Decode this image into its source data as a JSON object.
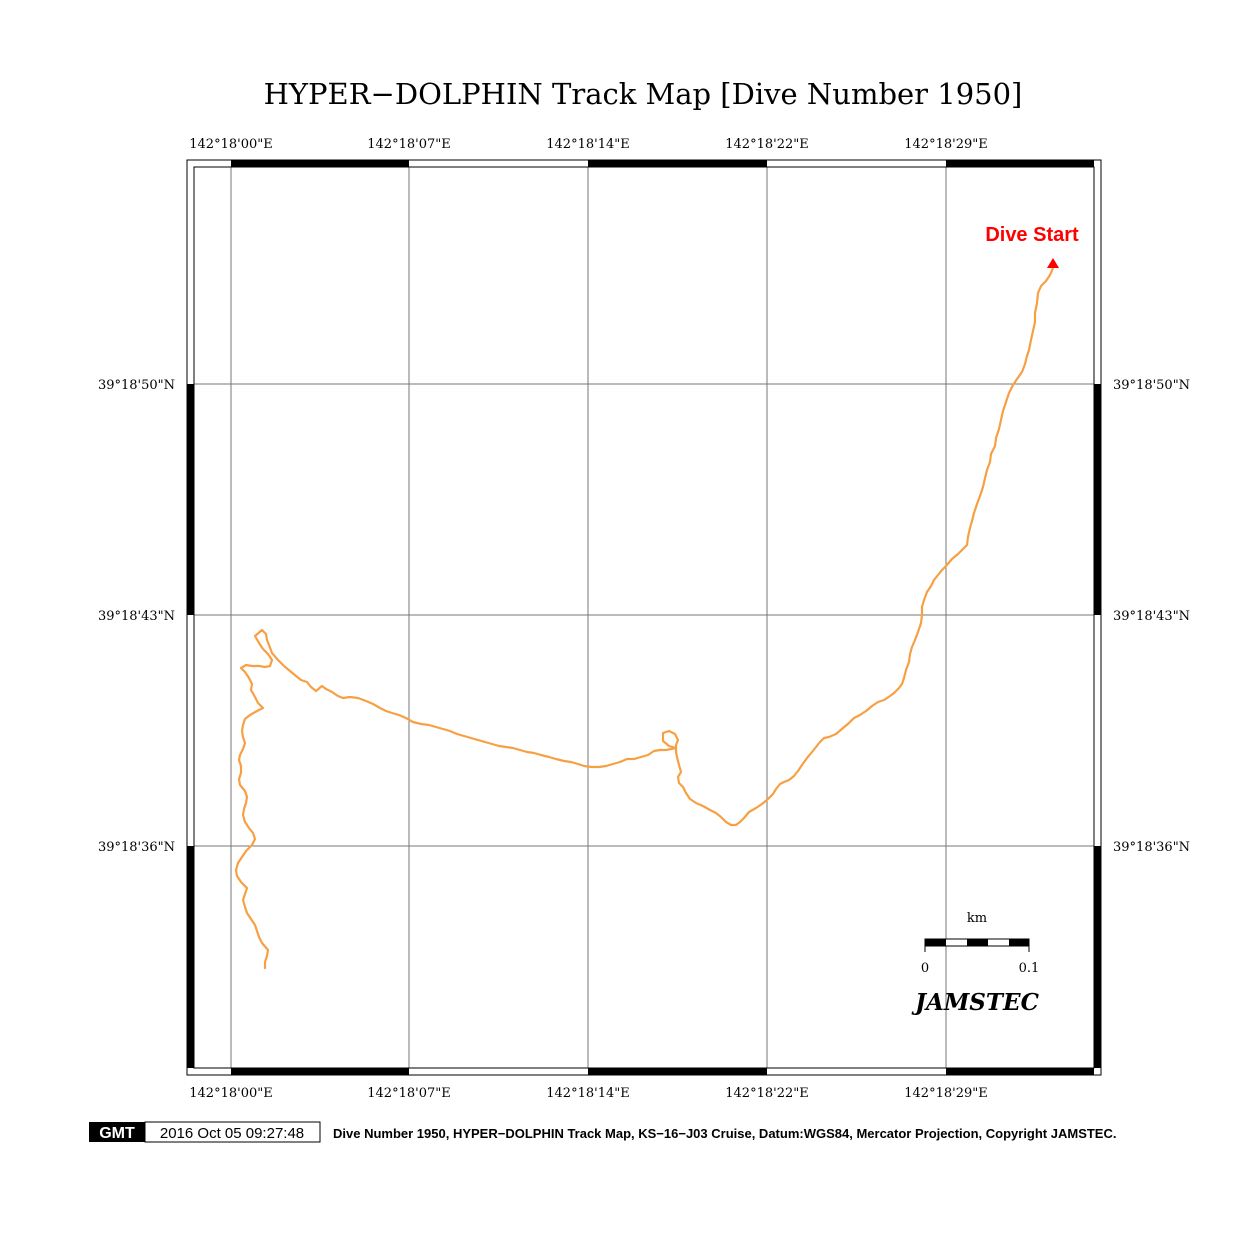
{
  "title": "HYPER−DOLPHIN Track Map [Dive Number 1950]",
  "map": {
    "lon_labels": [
      "142°18'00\"E",
      "142°18'07\"E",
      "142°18'14\"E",
      "142°18'22\"E",
      "142°18'29\"E"
    ],
    "lat_labels": [
      "39°18'50\"N",
      "39°18'43\"N",
      "39°18'36\"N"
    ],
    "start_label": "Dive Start",
    "start_color": "#ff0000",
    "track_color": "#f7a043",
    "scale_bar": {
      "unit": "km",
      "min_label": "0",
      "max_label": "0.1"
    },
    "watermark": "JAMSTEC"
  },
  "footer": {
    "logo": "GMT",
    "timestamp": "2016 Oct 05 09:27:48",
    "caption": "Dive Number 1950, HYPER−DOLPHIN Track Map, KS−16−J03 Cruise, Datum:WGS84, Mercator Projection, Copyright JAMSTEC."
  }
}
